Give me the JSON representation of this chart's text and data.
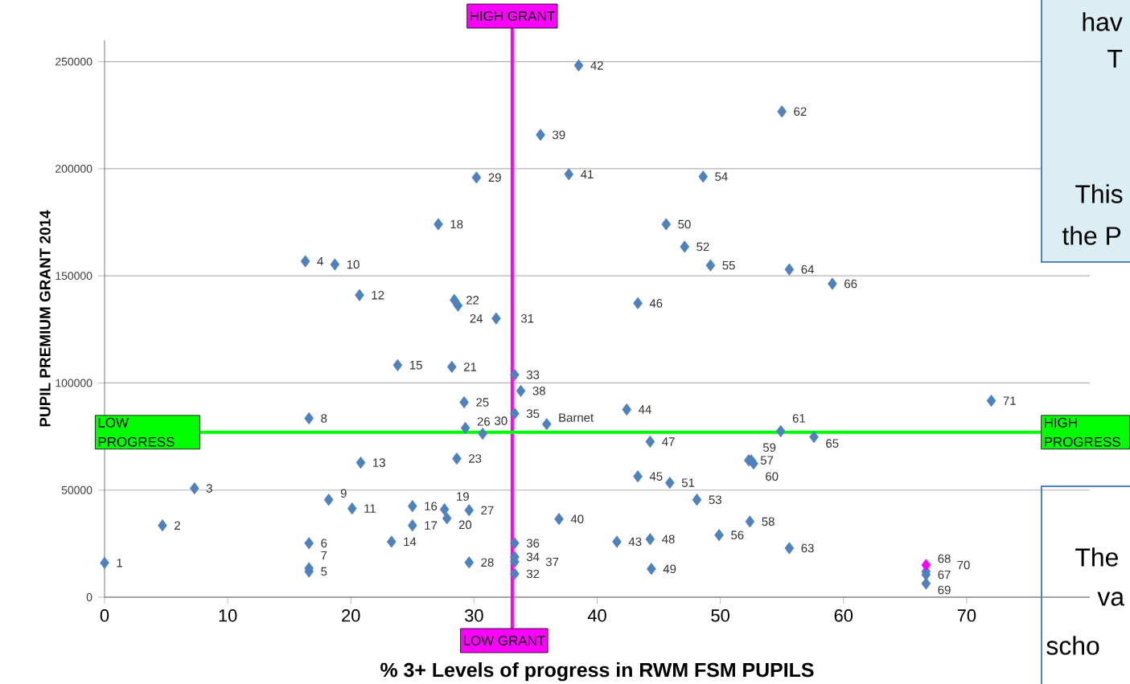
{
  "chart_data": {
    "type": "scatter",
    "xlabel": "**% 3+ Levels of progress in RWM   FSM PUPILS**",
    "ylabel": "**PUPIL PREMIUM GRANT 2014**",
    "x": [
      0,
      4.7,
      7.3,
      16.3,
      16.6,
      16.6,
      16.6,
      16.6,
      18.2,
      18.7,
      20.1,
      20.7,
      20.8,
      23.3,
      23.8,
      25.0,
      25.0,
      27.1,
      27.6,
      27.8,
      28.2,
      28.4,
      28.6,
      28.7,
      29.2,
      29.3,
      29.6,
      29.6,
      30.2,
      30.7,
      31.8,
      33.3,
      33.3,
      33.3,
      33.3,
      33.3,
      33.3,
      33.8,
      35.4,
      36.9,
      37.7,
      38.5,
      41.6,
      42.4,
      43.3,
      43.3,
      44.3,
      44.3,
      44.4,
      45.6,
      45.9,
      47.1,
      48.1,
      48.6,
      49.2,
      49.9,
      52.3,
      52.4,
      52.5,
      52.7,
      54.9,
      55.0,
      55.6,
      55.6,
      57.6,
      59.1,
      66.7,
      66.7,
      66.7,
      66.7,
      72.0,
      35.9
    ],
    "values": [
      16000,
      33500,
      50800,
      156800,
      12000,
      25200,
      13500,
      83500,
      45500,
      155300,
      41400,
      141000,
      62800,
      25900,
      108300,
      42500,
      33500,
      174100,
      41000,
      36800,
      107500,
      138700,
      64700,
      136100,
      91000,
      79000,
      40600,
      16200,
      195900,
      76300,
      130100,
      10900,
      103800,
      18800,
      85700,
      25200,
      16500,
      96300,
      215800,
      36500,
      197400,
      248200,
      25900,
      87600,
      56400,
      137200,
      72600,
      27100,
      13200,
      174100,
      53400,
      163600,
      45500,
      196300,
      154900,
      29000,
      63900,
      35300,
      63900,
      62400,
      77500,
      226700,
      22900,
      153000,
      74800,
      146300,
      10500,
      12000,
      6400,
      15000,
      91700,
      80800
    ],
    "colors": [
      "#4f81bd",
      "#4f81bd",
      "#4f81bd",
      "#4f81bd",
      "#4f81bd",
      "#4f81bd",
      "#4f81bd",
      "#4f81bd",
      "#4f81bd",
      "#4f81bd",
      "#4f81bd",
      "#4f81bd",
      "#4f81bd",
      "#4f81bd",
      "#4f81bd",
      "#4f81bd",
      "#4f81bd",
      "#4f81bd",
      "#4f81bd",
      "#4f81bd",
      "#4f81bd",
      "#4f81bd",
      "#4f81bd",
      "#4f81bd",
      "#4f81bd",
      "#4f81bd",
      "#4f81bd",
      "#4f81bd",
      "#4f81bd",
      "#4f81bd",
      "#4f81bd",
      "#4f81bd",
      "#4f81bd",
      "#4f81bd",
      "#4f81bd",
      "#4f81bd",
      "#4f81bd",
      "#4f81bd",
      "#4f81bd",
      "#4f81bd",
      "#4f81bd",
      "#4f81bd",
      "#4f81bd",
      "#4f81bd",
      "#4f81bd",
      "#4f81bd",
      "#4f81bd",
      "#4f81bd",
      "#4f81bd",
      "#4f81bd",
      "#4f81bd",
      "#4f81bd",
      "#4f81bd",
      "#4f81bd",
      "#4f81bd",
      "#4f81bd",
      "#4f81bd",
      "#4f81bd",
      "#4f81bd",
      "#4f81bd",
      "#4f81bd",
      "#4f81bd",
      "#4f81bd",
      "#4f81bd",
      "#4f81bd",
      "#4f81bd",
      "#4f81bd",
      "#4f81bd",
      "#4f81bd",
      "#ff00ff",
      "#4f81bd",
      "#4f81bd"
    ],
    "marker": "diamond",
    "xlim": [
      0,
      80
    ],
    "xticks": [
      0,
      10,
      20,
      30,
      40,
      50,
      60,
      70
    ],
    "ylim": [
      0,
      260000
    ],
    "yticks": [
      0,
      50000,
      100000,
      150000,
      200000,
      250000
    ],
    "grid": "y",
    "ref_lines": [
      {
        "axis": "x",
        "value": 33.1,
        "label": "HIGH GRANT",
        "color": "#ff00ff"
      },
      {
        "axis": "y",
        "value": 77000,
        "label": "LOW PROGRESS",
        "color": "#00ff00"
      }
    ],
    "annotations": [
      {
        "text": "1",
        "x": 0,
        "y": 16000
      },
      {
        "text": "2",
        "x": 4.7,
        "y": 33500
      },
      {
        "text": "3",
        "x": 7.3,
        "y": 50800
      },
      {
        "text": "4",
        "x": 16.3,
        "y": 156800
      },
      {
        "text": "5",
        "x": 16.6,
        "y": 12000
      },
      {
        "text": "6",
        "x": 16.6,
        "y": 25200
      },
      {
        "text": "7",
        "x": 16.6,
        "y": 13500
      },
      {
        "text": "8",
        "x": 16.6,
        "y": 83500
      },
      {
        "text": "9",
        "x": 18.2,
        "y": 45500
      },
      {
        "text": "10",
        "x": 18.7,
        "y": 155300
      },
      {
        "text": "11",
        "x": 20.1,
        "y": 41400
      },
      {
        "text": "12",
        "x": 20.7,
        "y": 141000
      },
      {
        "text": "13",
        "x": 20.8,
        "y": 62800
      },
      {
        "text": "14",
        "x": 23.3,
        "y": 25900
      },
      {
        "text": "15",
        "x": 23.8,
        "y": 108300
      },
      {
        "text": "16",
        "x": 25.0,
        "y": 42500
      },
      {
        "text": "17",
        "x": 25.0,
        "y": 33500
      },
      {
        "text": "18",
        "x": 27.1,
        "y": 174100
      },
      {
        "text": "19",
        "x": 27.6,
        "y": 41000
      },
      {
        "text": "20",
        "x": 27.8,
        "y": 36800
      },
      {
        "text": "21",
        "x": 28.2,
        "y": 107500
      },
      {
        "text": "22",
        "x": 28.4,
        "y": 138700
      },
      {
        "text": "23",
        "x": 28.6,
        "y": 64700
      },
      {
        "text": "24",
        "x": 28.7,
        "y": 136100
      },
      {
        "text": "25",
        "x": 29.2,
        "y": 91000
      },
      {
        "text": "26",
        "x": 29.3,
        "y": 79000
      },
      {
        "text": "27",
        "x": 29.6,
        "y": 40600
      },
      {
        "text": "28",
        "x": 29.6,
        "y": 16200
      },
      {
        "text": "29",
        "x": 30.2,
        "y": 195900
      },
      {
        "text": "30",
        "x": 30.7,
        "y": 76300
      },
      {
        "text": "31",
        "x": 31.8,
        "y": 130100
      },
      {
        "text": "32",
        "x": 33.3,
        "y": 10900
      },
      {
        "text": "33",
        "x": 33.3,
        "y": 103800
      },
      {
        "text": "34",
        "x": 33.3,
        "y": 18800
      },
      {
        "text": "35",
        "x": 33.3,
        "y": 85700
      },
      {
        "text": "36",
        "x": 33.3,
        "y": 25200
      },
      {
        "text": "37",
        "x": 33.3,
        "y": 16500
      },
      {
        "text": "38",
        "x": 33.8,
        "y": 96300
      },
      {
        "text": "39",
        "x": 35.4,
        "y": 215800
      },
      {
        "text": "40",
        "x": 36.9,
        "y": 36500
      },
      {
        "text": "41",
        "x": 37.7,
        "y": 197400
      },
      {
        "text": "42",
        "x": 38.5,
        "y": 248200
      },
      {
        "text": "43",
        "x": 41.6,
        "y": 25900
      },
      {
        "text": "44",
        "x": 42.4,
        "y": 87600
      },
      {
        "text": "45",
        "x": 43.3,
        "y": 56400
      },
      {
        "text": "46",
        "x": 43.3,
        "y": 137200
      },
      {
        "text": "47",
        "x": 44.3,
        "y": 72600
      },
      {
        "text": "48",
        "x": 44.3,
        "y": 27100
      },
      {
        "text": "49",
        "x": 44.4,
        "y": 13200
      },
      {
        "text": "50",
        "x": 45.6,
        "y": 174100
      },
      {
        "text": "51",
        "x": 45.9,
        "y": 53400
      },
      {
        "text": "52",
        "x": 47.1,
        "y": 163600
      },
      {
        "text": "53",
        "x": 48.1,
        "y": 45500
      },
      {
        "text": "54",
        "x": 48.6,
        "y": 196300
      },
      {
        "text": "55",
        "x": 49.2,
        "y": 154900
      },
      {
        "text": "56",
        "x": 49.9,
        "y": 29000
      },
      {
        "text": "57",
        "x": 52.3,
        "y": 63900
      },
      {
        "text": "58",
        "x": 52.4,
        "y": 35300
      },
      {
        "text": "59",
        "x": 52.5,
        "y": 63900
      },
      {
        "text": "60",
        "x": 52.7,
        "y": 62400
      },
      {
        "text": "61",
        "x": 54.9,
        "y": 77500
      },
      {
        "text": "62",
        "x": 55.0,
        "y": 226700
      },
      {
        "text": "63",
        "x": 55.6,
        "y": 22900
      },
      {
        "text": "64",
        "x": 55.6,
        "y": 153000
      },
      {
        "text": "65",
        "x": 57.6,
        "y": 74800
      },
      {
        "text": "66",
        "x": 59.1,
        "y": 146300
      },
      {
        "text": "67",
        "x": 66.7,
        "y": 10500
      },
      {
        "text": "68",
        "x": 66.7,
        "y": 12000
      },
      {
        "text": "69",
        "x": 66.7,
        "y": 6400
      },
      {
        "text": "70",
        "x": 66.7,
        "y": 15000
      },
      {
        "text": "71",
        "x": 72.0,
        "y": 91700
      },
      {
        "text": "Barnet",
        "x": 35.9,
        "y": 80800
      },
      {
        "text": "LOW GRANT",
        "x": 33.1
      },
      {
        "text": "HIGH PROGRESS",
        "y": 77000
      },
      "hav",
      "T",
      "This",
      "the P",
      "The",
      "va",
      "scho"
    ]
  }
}
